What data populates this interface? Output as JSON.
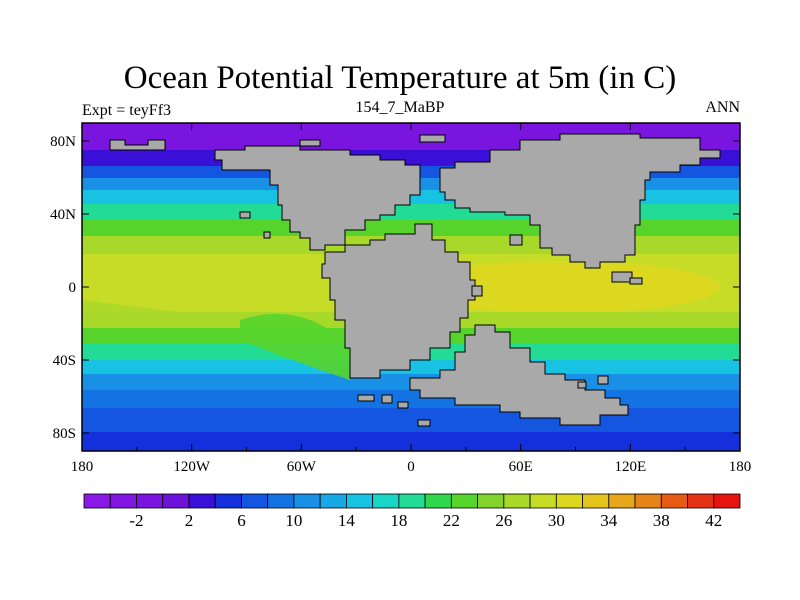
{
  "title": "Ocean Potential Temperature at 5m (in C)",
  "left_label": "Expt = teyFf3",
  "center_label": "154_7_MaBP",
  "right_label": "ANN",
  "y_ticks": [
    "80N",
    "40N",
    "0",
    "40S",
    "80S"
  ],
  "x_ticks": [
    "180",
    "120W",
    "60W",
    "0",
    "60E",
    "120E",
    "180"
  ],
  "colorbar": {
    "tick_labels": [
      "-2",
      "2",
      "6",
      "10",
      "14",
      "18",
      "22",
      "26",
      "30",
      "34",
      "38",
      "42"
    ],
    "colors": [
      "#8a18e6",
      "#8216e2",
      "#7a14df",
      "#6c12d9",
      "#3a10d8",
      "#1430dc",
      "#1456e0",
      "#1473e3",
      "#1890e6",
      "#18a8e6",
      "#18c2e2",
      "#18d6c6",
      "#22dc96",
      "#2ed84a",
      "#56d42c",
      "#82d42c",
      "#a8d82a",
      "#c6dc26",
      "#dcd820",
      "#e4c41c",
      "#e6a818",
      "#e68418",
      "#e65a14",
      "#e63214",
      "#e61410"
    ]
  },
  "colors": {
    "land": "#a9a9a9",
    "polar": "#7a22e2",
    "cold": "#2050dc",
    "cool": "#18b8e4",
    "temperate": "#34d66a",
    "warm": "#8ed82c",
    "tropical": "#c8dc24"
  }
}
